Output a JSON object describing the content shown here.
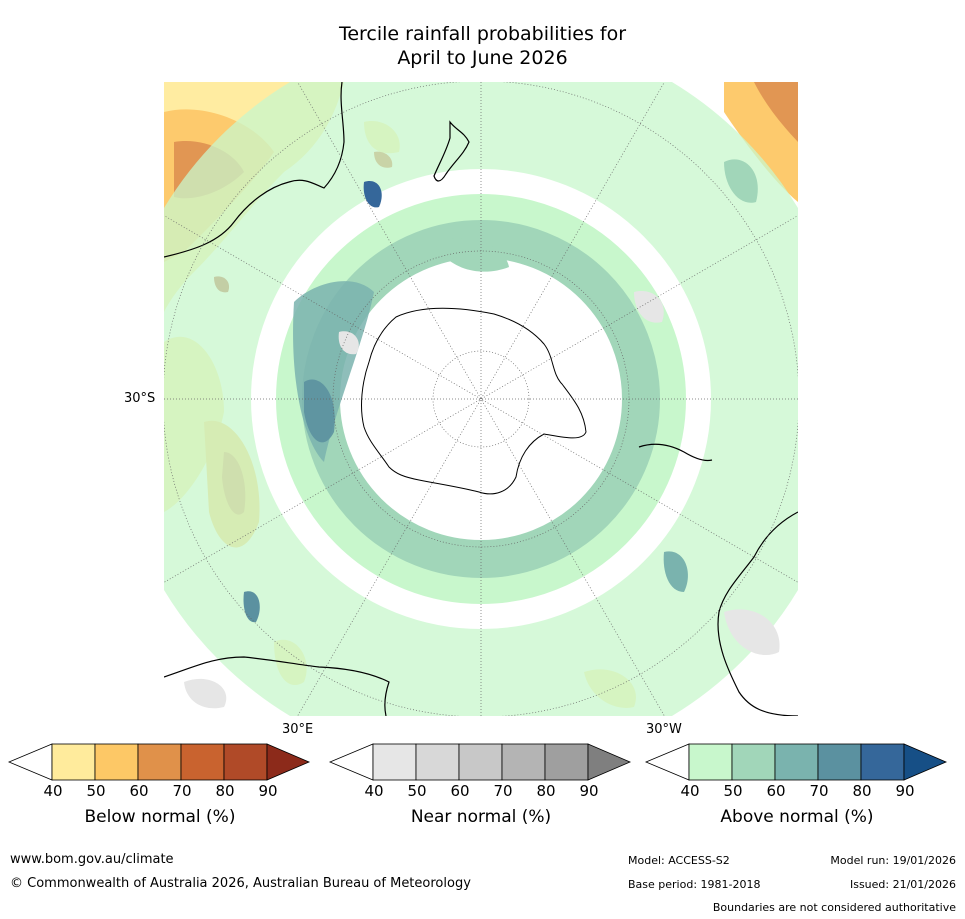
{
  "title": {
    "line1": "Tercile rainfall probabilities for",
    "line2": "April to June 2026"
  },
  "map": {
    "projection": "south polar stereographic",
    "grid_labels": {
      "lat": "30°S",
      "lon_left": "30°E",
      "lon_right": "30°W"
    },
    "colors": {
      "land_outline": "#000000",
      "ocean_bg": "#ffffff",
      "grid": "#666666"
    }
  },
  "colorbars": [
    {
      "name": "below",
      "label": "Below normal (%)",
      "ticks": [
        "40",
        "50",
        "60",
        "70",
        "80",
        "90"
      ],
      "colors": [
        "#ffffff",
        "#ffeb9c",
        "#fdc866",
        "#e0914a",
        "#c9632f",
        "#b04a28",
        "#8c2a1a"
      ]
    },
    {
      "name": "near",
      "label": "Near normal (%)",
      "ticks": [
        "40",
        "50",
        "60",
        "70",
        "80",
        "90"
      ],
      "colors": [
        "#ffffff",
        "#e6e6e6",
        "#d8d8d8",
        "#c8c8c8",
        "#b4b4b4",
        "#9f9f9f",
        "#7f7f7f"
      ]
    },
    {
      "name": "above",
      "label": "Above normal (%)",
      "ticks": [
        "40",
        "50",
        "60",
        "70",
        "80",
        "90"
      ],
      "colors": [
        "#ffffff",
        "#c8f7cc",
        "#a1d6b9",
        "#7ab3ae",
        "#5b91a0",
        "#35679a",
        "#164f86"
      ]
    }
  ],
  "footer": {
    "website": "www.bom.gov.au/climate",
    "copyright": "© Commonwealth of Australia 2026, Australian Bureau of Meteorology",
    "model": "Model: ACCESS-S2",
    "model_run": "Model run: 19/01/2026",
    "base_period": "Base period: 1981-2018",
    "issued": "Issued: 21/01/2026",
    "disclaimer": "Boundaries are not considered authoritative"
  }
}
